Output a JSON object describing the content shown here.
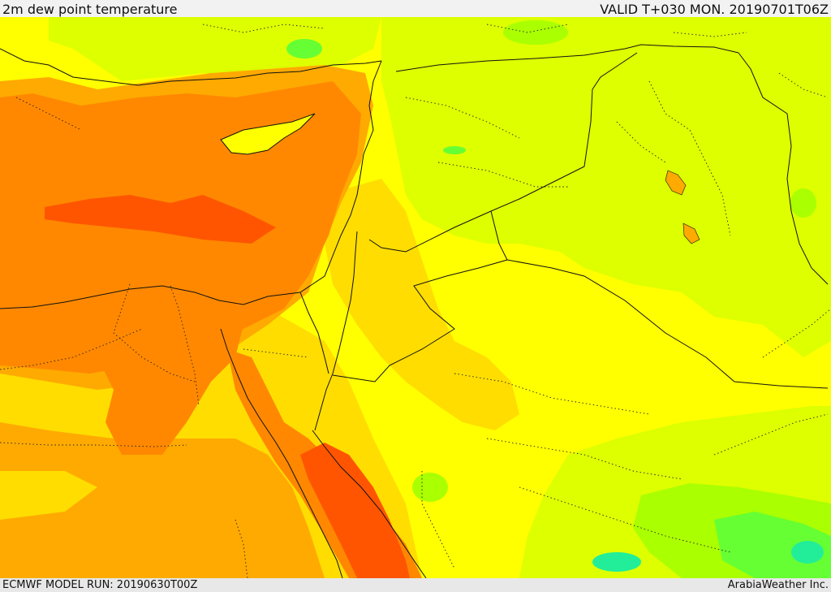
{
  "header": {
    "title": "2m dew point temperature",
    "valid_time": "VALID T+030 MON. 20190701T06Z"
  },
  "footer": {
    "model_run": "ECMWF MODEL RUN: 20190630T00Z",
    "credit": "ArabiaWeather Inc."
  },
  "colors": {
    "yellow": "#ffff00",
    "gold": "#ffdd00",
    "amber": "#ffaa00",
    "orange": "#ff8800",
    "red_orange": "#ff5500",
    "lime": "#ddff00",
    "light_green": "#aaff00",
    "green": "#66ff33",
    "teal": "#22ee99",
    "border": "#111111"
  }
}
